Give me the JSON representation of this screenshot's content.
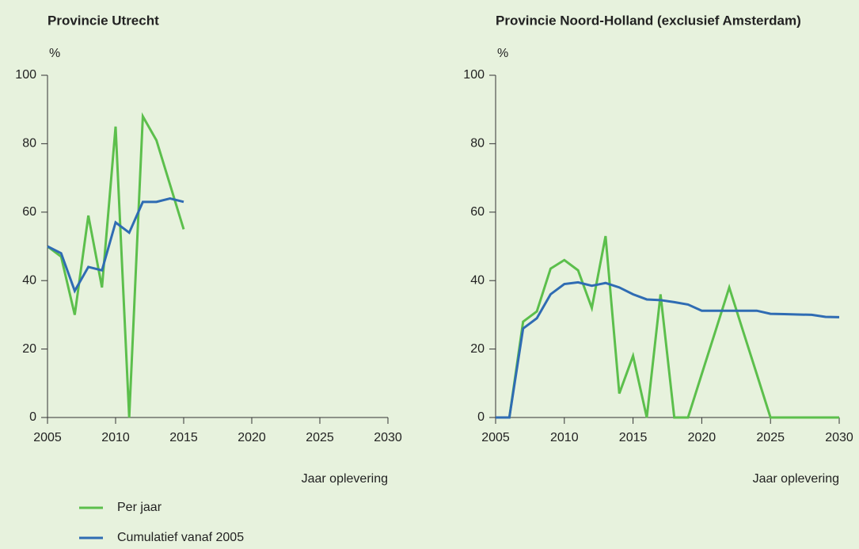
{
  "chart_data": [
    {
      "type": "line",
      "title": "Provincie Utrecht",
      "ylabel": "%",
      "xlabel": "Jaar oplevering",
      "x": [
        2005,
        2006,
        2007,
        2008,
        2009,
        2010,
        2011,
        2012,
        2013,
        2014,
        2015
      ],
      "series": [
        {
          "name": "Per jaar",
          "color": "#5cbf4c",
          "values": [
            50,
            47,
            30,
            59,
            38,
            85,
            0,
            88,
            81,
            68,
            55
          ]
        },
        {
          "name": "Cumulatief vanaf 2005",
          "color": "#2f6cb3",
          "values": [
            50,
            48,
            37,
            44,
            43,
            57,
            54,
            63,
            63,
            64,
            63
          ]
        }
      ],
      "xlim": [
        2005,
        2030
      ],
      "xticks": [
        2005,
        2010,
        2015,
        2020,
        2025,
        2030
      ],
      "ylim": [
        0,
        100
      ],
      "yticks": [
        0,
        20,
        40,
        60,
        80,
        100
      ]
    },
    {
      "type": "line",
      "title": "Provincie Noord-Holland (exclusief Amsterdam)",
      "ylabel": "%",
      "xlabel": "Jaar oplevering",
      "x": [
        2005,
        2006,
        2007,
        2008,
        2009,
        2010,
        2011,
        2012,
        2013,
        2014,
        2015,
        2016,
        2017,
        2018,
        2019,
        2020,
        2021,
        2022,
        2023,
        2024,
        2025,
        2026,
        2027,
        2028,
        2029,
        2030
      ],
      "series": [
        {
          "color": "#5cbf4c",
          "values": [
            0,
            0,
            28,
            31,
            43.5,
            46,
            43,
            32,
            53,
            7,
            18,
            0,
            36,
            0,
            0,
            12.7,
            25.3,
            38,
            25.3,
            12.7,
            0,
            0,
            0,
            0,
            0,
            0
          ]
        },
        {
          "color": "#2f6cb3",
          "values": [
            0,
            0,
            26,
            29,
            36,
            39,
            39.5,
            38.5,
            39.3,
            38,
            36,
            34.5,
            34.3,
            33.7,
            33,
            31.2,
            31.2,
            31.2,
            31.2,
            31.2,
            30.3,
            30.2,
            30.1,
            30,
            29.4,
            29.3
          ]
        }
      ],
      "xlim": [
        2005,
        2030
      ],
      "xticks": [
        2005,
        2010,
        2015,
        2020,
        2025,
        2030
      ],
      "ylim": [
        0,
        100
      ],
      "yticks": [
        0,
        20,
        40,
        60,
        80,
        100
      ]
    }
  ]
}
